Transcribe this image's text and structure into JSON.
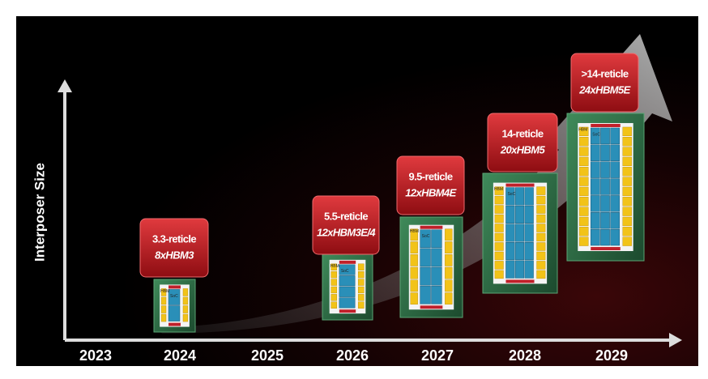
{
  "axis_label": "Interposer Size",
  "years": [
    "2023",
    "2024",
    "2025",
    "2026",
    "2027",
    "2028",
    "2029"
  ],
  "chip_labels": {
    "hbm": "HBM",
    "soc": "SoC"
  },
  "packages": [
    {
      "year": "2024",
      "line1": "3.3-reticle",
      "line2": "8xHBM3"
    },
    {
      "year": "2026",
      "line1": "5.5-reticle",
      "line2": "12xHBM3E/4"
    },
    {
      "year": "2027",
      "line1": "9.5-reticle",
      "line2": "12xHBM4E"
    },
    {
      "year": "2028",
      "line1": "14-reticle",
      "line2": "20xHBM5"
    },
    {
      "year": "2029",
      "line1": ">14-reticle",
      "line2": "24xHBM5E"
    }
  ]
}
